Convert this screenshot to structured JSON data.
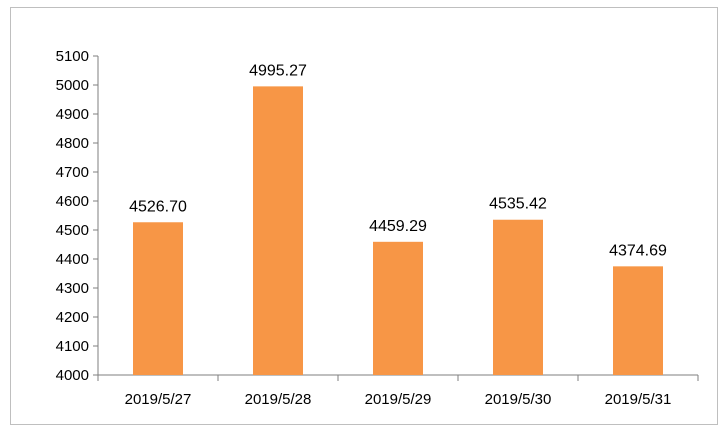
{
  "chart_data": {
    "type": "bar",
    "categories": [
      "2019/5/27",
      "2019/5/28",
      "2019/5/29",
      "2019/5/30",
      "2019/5/31"
    ],
    "values": [
      4526.7,
      4995.27,
      4459.29,
      4535.42,
      4374.69
    ],
    "data_labels": [
      "4526.70",
      "4995.27",
      "4459.29",
      "4535.42",
      "4374.69"
    ],
    "y_ticks": [
      "4000",
      "4100",
      "4200",
      "4300",
      "4400",
      "4500",
      "4600",
      "4700",
      "4800",
      "4900",
      "5000",
      "5100"
    ],
    "ylim": [
      4000,
      5100
    ],
    "title": "",
    "xlabel": "",
    "ylabel": "",
    "grid": false,
    "legend": "none",
    "bar_color": "#F79646",
    "axis_color": "#7f7f7f"
  }
}
